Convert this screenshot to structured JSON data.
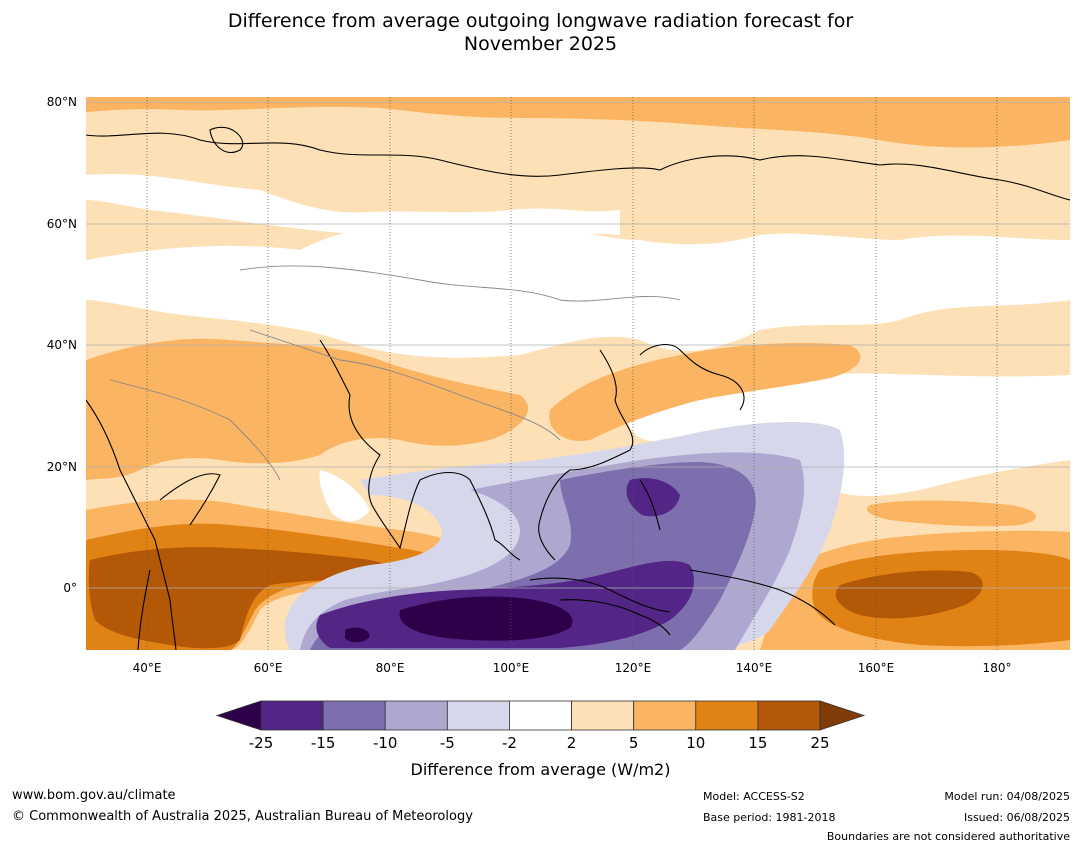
{
  "title_line1": "Difference from average outgoing longwave radiation forecast for",
  "title_line2": "November 2025",
  "map": {
    "lat_labels": [
      "80°N",
      "60°N",
      "40°N",
      "20°N",
      "0°"
    ],
    "lon_labels": [
      "40°E",
      "60°E",
      "80°E",
      "100°E",
      "120°E",
      "140°E",
      "160°E",
      "180°"
    ]
  },
  "legend": {
    "title": "Difference from average (W/m2)",
    "ticks": [
      "-25",
      "-15",
      "-10",
      "-5",
      "-2",
      "2",
      "5",
      "10",
      "15",
      "25"
    ],
    "colors": [
      "#2d0049",
      "#522586",
      "#7d6fad",
      "#aea8d1",
      "#d7d7eb",
      "#ffffff",
      "#fde0b5",
      "#fbb461",
      "#e08214",
      "#b35806",
      "#7f3b08"
    ]
  },
  "footer": {
    "url": "www.bom.gov.au/climate",
    "copyright": "© Commonwealth of Australia 2025, Australian Bureau of Meteorology",
    "model": "Model: ACCESS-S2",
    "base_period": "Base period: 1981-2018",
    "model_run": "Model run: 04/08/2025",
    "issued": "Issued: 06/08/2025",
    "disclaimer": "Boundaries are not considered authoritative"
  }
}
